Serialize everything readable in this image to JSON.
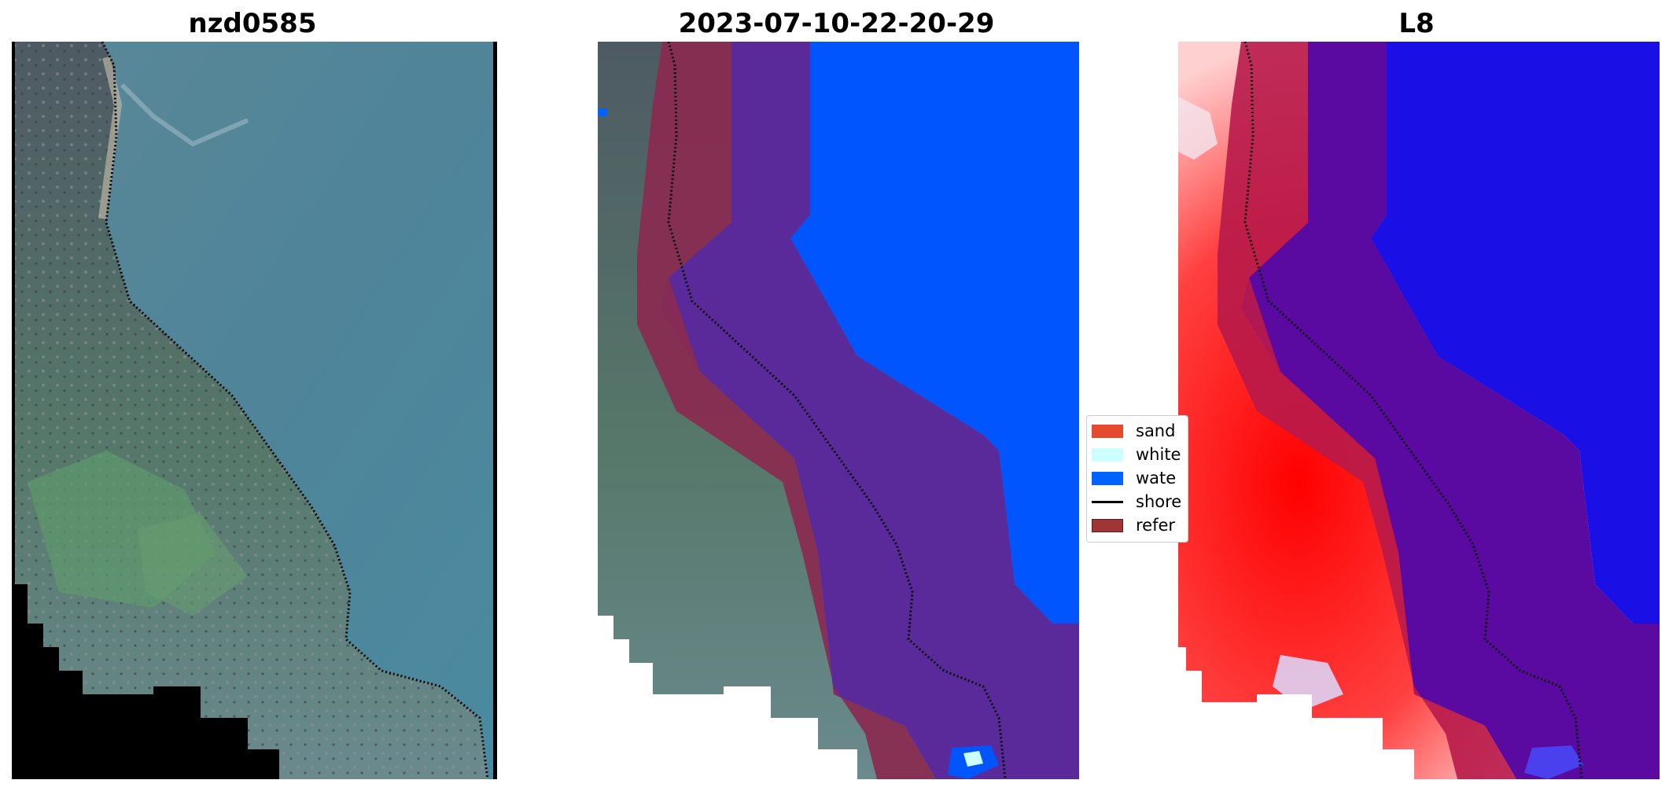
{
  "panels": [
    {
      "title": "nzd0585"
    },
    {
      "title": "2023-07-10-22-20-29"
    },
    {
      "title": "L8"
    }
  ],
  "legend": {
    "items": [
      {
        "label": "sand",
        "color": "#e34a2e"
      },
      {
        "label": "white",
        "color": "#ccffff"
      },
      {
        "label": "wate",
        "color": "#0062ff"
      },
      {
        "label": "shore",
        "color": "#000000"
      },
      {
        "label": "refer",
        "color": "#a03536"
      }
    ]
  },
  "colors": {
    "water_rgb": "#4a7d92",
    "land_dark": "#4a5560",
    "land_green": "#5f8f67",
    "nodata": "#000000",
    "class_water": "#0055ff",
    "reference_band": "#8a2a50",
    "buffer_purple": "#5a2a9a",
    "index_red": "#ff1a1a",
    "index_blue": "#1a10e6"
  }
}
